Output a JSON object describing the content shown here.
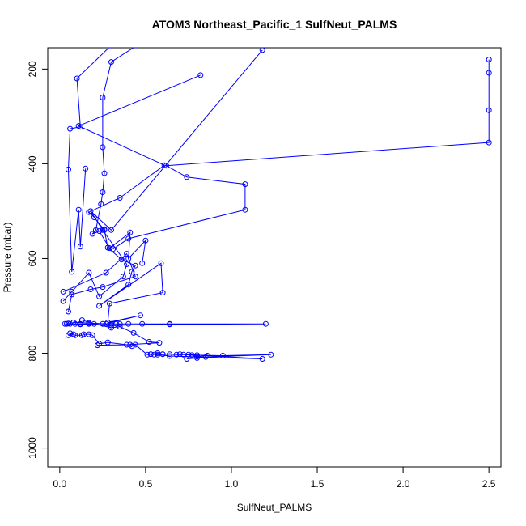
{
  "chart_data": {
    "type": "line",
    "title": "ATOM3 Northeast_Pacific_1 SulfNeut_PALMS",
    "xlabel": "SulfNeut_PALMS",
    "ylabel": "Pressure (mbar)",
    "xlim": [
      -0.07,
      2.57
    ],
    "ylim": [
      1040,
      155
    ],
    "y_reversed": true,
    "x_ticks": [
      0.0,
      0.5,
      1.0,
      1.5,
      2.0,
      2.5
    ],
    "x_tick_labels": [
      "0.0",
      "0.5",
      "1.0",
      "1.5",
      "2.0",
      "2.5"
    ],
    "y_ticks": [
      200,
      400,
      600,
      800,
      1000
    ],
    "y_tick_labels": [
      "200",
      "400",
      "600",
      "800",
      "1000"
    ],
    "grid": false,
    "color": "#0000ff",
    "marker": "open-circle",
    "series": [
      {
        "x": [
          0.3,
          0.1,
          0.12,
          0.06,
          0.05,
          0.07,
          0.11,
          0.12,
          0.15
        ],
        "y": [
          150,
          220,
          322,
          326,
          412,
          628,
          497,
          575,
          410
        ]
      },
      {
        "x": [
          0.45,
          0.3,
          0.25,
          0.25,
          0.26,
          0.25,
          0.24,
          0.21,
          0.19,
          0.26,
          0.23,
          0.29,
          0.41,
          0.4,
          0.5,
          0.48
        ],
        "y": [
          150,
          185,
          260,
          365,
          420,
          460,
          485,
          540,
          548,
          538,
          542,
          578,
          545,
          600,
          562,
          610
        ]
      },
      {
        "x": [
          0.82,
          0.11,
          0.61,
          0.35,
          0.17,
          0.2,
          0.26,
          0.28,
          0.36,
          0.44,
          0.42,
          0.4,
          0.23,
          0.59,
          0.6,
          0.29,
          0.28,
          0.47,
          0.27,
          0.17,
          0.08
        ],
        "y": [
          213,
          320,
          403,
          472,
          502,
          513,
          540,
          577,
          602,
          615,
          628,
          655,
          700,
          610,
          672,
          695,
          735,
          720,
          738,
          736,
          735
        ]
      },
      {
        "x": [
          1.18,
          0.3,
          0.18,
          0.25,
          0.39,
          0.37,
          0.23,
          0.17,
          0.07,
          0.02
        ],
        "y": [
          160,
          540,
          500,
          540,
          612,
          638,
          680,
          630,
          670,
          690
        ]
      },
      {
        "x": [
          2.5,
          2.5,
          2.5,
          2.5,
          0.62,
          0.74,
          1.08,
          1.08,
          0.4,
          0.31
        ],
        "y": [
          180,
          208,
          287,
          355,
          404,
          428,
          443,
          497,
          558,
          580
        ]
      },
      {
        "x": [
          0.02,
          0.27,
          0.39,
          0.44,
          0.25,
          0.18,
          0.07,
          0.05
        ],
        "y": [
          670,
          630,
          590,
          638,
          660,
          665,
          676,
          712
        ]
      },
      {
        "x": [
          0.03,
          0.06,
          0.09,
          0.12,
          0.17,
          0.25,
          0.3,
          0.33,
          0.35,
          0.4,
          0.48,
          0.64,
          1.2,
          0.64,
          0.3,
          0.12,
          0.05,
          0.04
        ],
        "y": [
          738,
          738,
          738,
          738,
          738,
          738,
          738,
          738,
          738,
          738,
          738,
          738,
          738,
          739,
          741,
          739,
          737,
          738
        ]
      },
      {
        "x": [
          0.13,
          0.2,
          0.3,
          0.35,
          0.43,
          0.52,
          0.58,
          0.39,
          0.28,
          0.23,
          0.19,
          0.17,
          0.14,
          0.13,
          0.09,
          0.08,
          0.06,
          0.05
        ],
        "y": [
          730,
          738,
          746,
          744,
          757,
          776,
          778,
          782,
          777,
          780,
          762,
          760,
          760,
          762,
          762,
          760,
          758,
          762
        ]
      },
      {
        "x": [
          0.22,
          0.41,
          0.42,
          0.44,
          0.51,
          0.53,
          0.57,
          0.6,
          0.64,
          0.68,
          0.72,
          0.77,
          0.8,
          0.86,
          1.18,
          0.64,
          0.57,
          0.53
        ],
        "y": [
          783,
          782,
          785,
          782,
          803,
          802,
          800,
          802,
          802,
          803,
          803,
          804,
          807,
          805,
          812,
          806,
          803,
          802
        ]
      },
      {
        "x": [
          0.55,
          0.6,
          0.7,
          0.75,
          0.8,
          0.95,
          1.23,
          0.85,
          0.8,
          0.74
        ],
        "y": [
          803,
          802,
          802,
          803,
          804,
          805,
          803,
          808,
          810,
          812
        ]
      }
    ]
  }
}
